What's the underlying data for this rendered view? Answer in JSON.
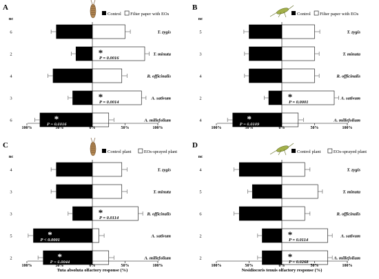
{
  "chart_data": [
    {
      "type": "bar",
      "panel_label": "A",
      "nc_header": "nc",
      "legend": {
        "neg": "Control",
        "pos": "Filter paper with EOs"
      },
      "xlabel": "",
      "xticks": [
        "100%",
        "50%",
        "0%",
        "50%",
        "100%"
      ],
      "xlim": [
        -100,
        100
      ],
      "insect": "tuta",
      "categories": [
        "T. zygis",
        "T. minuta",
        "R. officinalis",
        "A. sativum",
        "A. millefolium"
      ],
      "nc": [
        "6",
        "2",
        "4",
        "3",
        "6"
      ],
      "neg": [
        -55,
        -25,
        -60,
        -30,
        -80
      ],
      "pos": [
        50,
        80,
        45,
        75,
        25
      ],
      "neg_err": [
        8,
        7,
        8,
        7,
        8
      ],
      "pos_err": [
        8,
        7,
        8,
        7,
        8
      ],
      "sig": [
        false,
        true,
        false,
        true,
        true
      ],
      "star_side": [
        "",
        "pos",
        "",
        "pos",
        "neg"
      ],
      "pvals": [
        "",
        "P = 0.0016",
        "",
        "P = 0.0014",
        "P = 0.0016"
      ],
      "pval_side": [
        "",
        "pos",
        "",
        "pos",
        "neg"
      ]
    },
    {
      "type": "bar",
      "panel_label": "B",
      "nc_header": "nc",
      "legend": {
        "neg": "Control",
        "pos": "Filter paper with EOs"
      },
      "xlabel": "",
      "xticks": [
        "100%",
        "50%",
        "0%",
        "50%",
        "100%"
      ],
      "xlim": [
        -100,
        100
      ],
      "insect": "nesidiocoris",
      "categories": [
        "T. zygis",
        "T. minuta",
        "R. officinalis",
        "A. sativum",
        "A. millefolium"
      ],
      "nc": [
        "5",
        "3",
        "4",
        "2",
        "4"
      ],
      "neg": [
        -50,
        -50,
        -50,
        -20,
        -75
      ],
      "pos": [
        50,
        50,
        50,
        80,
        25
      ],
      "neg_err": [
        8,
        7,
        7,
        7,
        8
      ],
      "pos_err": [
        8,
        7,
        7,
        7,
        8
      ],
      "sig": [
        false,
        false,
        false,
        true,
        true
      ],
      "star_side": [
        "",
        "",
        "",
        "pos",
        "neg"
      ],
      "pvals": [
        "",
        "",
        "",
        "P = 0.0001",
        "P = 0.0109"
      ],
      "pval_side": [
        "",
        "",
        "",
        "pos",
        "neg"
      ]
    },
    {
      "type": "bar",
      "panel_label": "C",
      "nc_header": "nc",
      "legend": {
        "neg": "Control plant",
        "pos": "EOs-sprayed plant"
      },
      "xlabel": "Tuta absoluta olfactory response (%)",
      "xticks": [
        "100%",
        "50%",
        "0%",
        "50%",
        "100%"
      ],
      "xlim": [
        -100,
        100
      ],
      "insect": "tuta",
      "categories": [
        "T. zygis",
        "T. minuta",
        "R. officinalis",
        "A. sativum",
        "A. millefolium"
      ],
      "nc": [
        "4",
        "3",
        "3",
        "5",
        "2"
      ],
      "neg": [
        -55,
        -55,
        -30,
        -90,
        -75
      ],
      "pos": [
        45,
        45,
        70,
        10,
        25
      ],
      "neg_err": [
        8,
        8,
        7,
        8,
        8
      ],
      "pos_err": [
        8,
        8,
        7,
        8,
        8
      ],
      "sig": [
        false,
        false,
        true,
        true,
        true
      ],
      "star_side": [
        "",
        "",
        "pos",
        "neg",
        "neg"
      ],
      "pvals": [
        "",
        "",
        "P = 0.0114",
        "P < 0.0001",
        "P = 0.0044"
      ],
      "pval_side": [
        "",
        "",
        "pos",
        "neg",
        "neg"
      ]
    },
    {
      "type": "bar",
      "panel_label": "D",
      "nc_header": "nc",
      "legend": {
        "neg": "Control plant",
        "pos": "EOs-sprayed plant"
      },
      "xlabel": "Nesidiocoris tenuis olfactory response (%)",
      "xticks": [
        "100%",
        "50%",
        "0%",
        "50%",
        "100%"
      ],
      "xlim": [
        -100,
        100
      ],
      "insect": "nesidiocoris",
      "categories": [
        "T. zygis",
        "T. minuta",
        "R. officinalis",
        "A. sativum",
        "A. millefolium"
      ],
      "nc": [
        "4",
        "5",
        "6",
        "2",
        "2"
      ],
      "neg": [
        -65,
        -45,
        -65,
        -30,
        -30
      ],
      "pos": [
        35,
        55,
        35,
        70,
        70
      ],
      "neg_err": [
        8,
        7,
        8,
        7,
        7
      ],
      "pos_err": [
        8,
        7,
        8,
        7,
        7
      ],
      "sig": [
        false,
        false,
        false,
        true,
        true
      ],
      "star_side": [
        "",
        "",
        "",
        "pos",
        "pos"
      ],
      "pvals": [
        "",
        "",
        "",
        "P = 0.0114",
        "P = 0.0268"
      ],
      "pval_side": [
        "",
        "",
        "",
        "pos",
        "pos"
      ]
    }
  ]
}
